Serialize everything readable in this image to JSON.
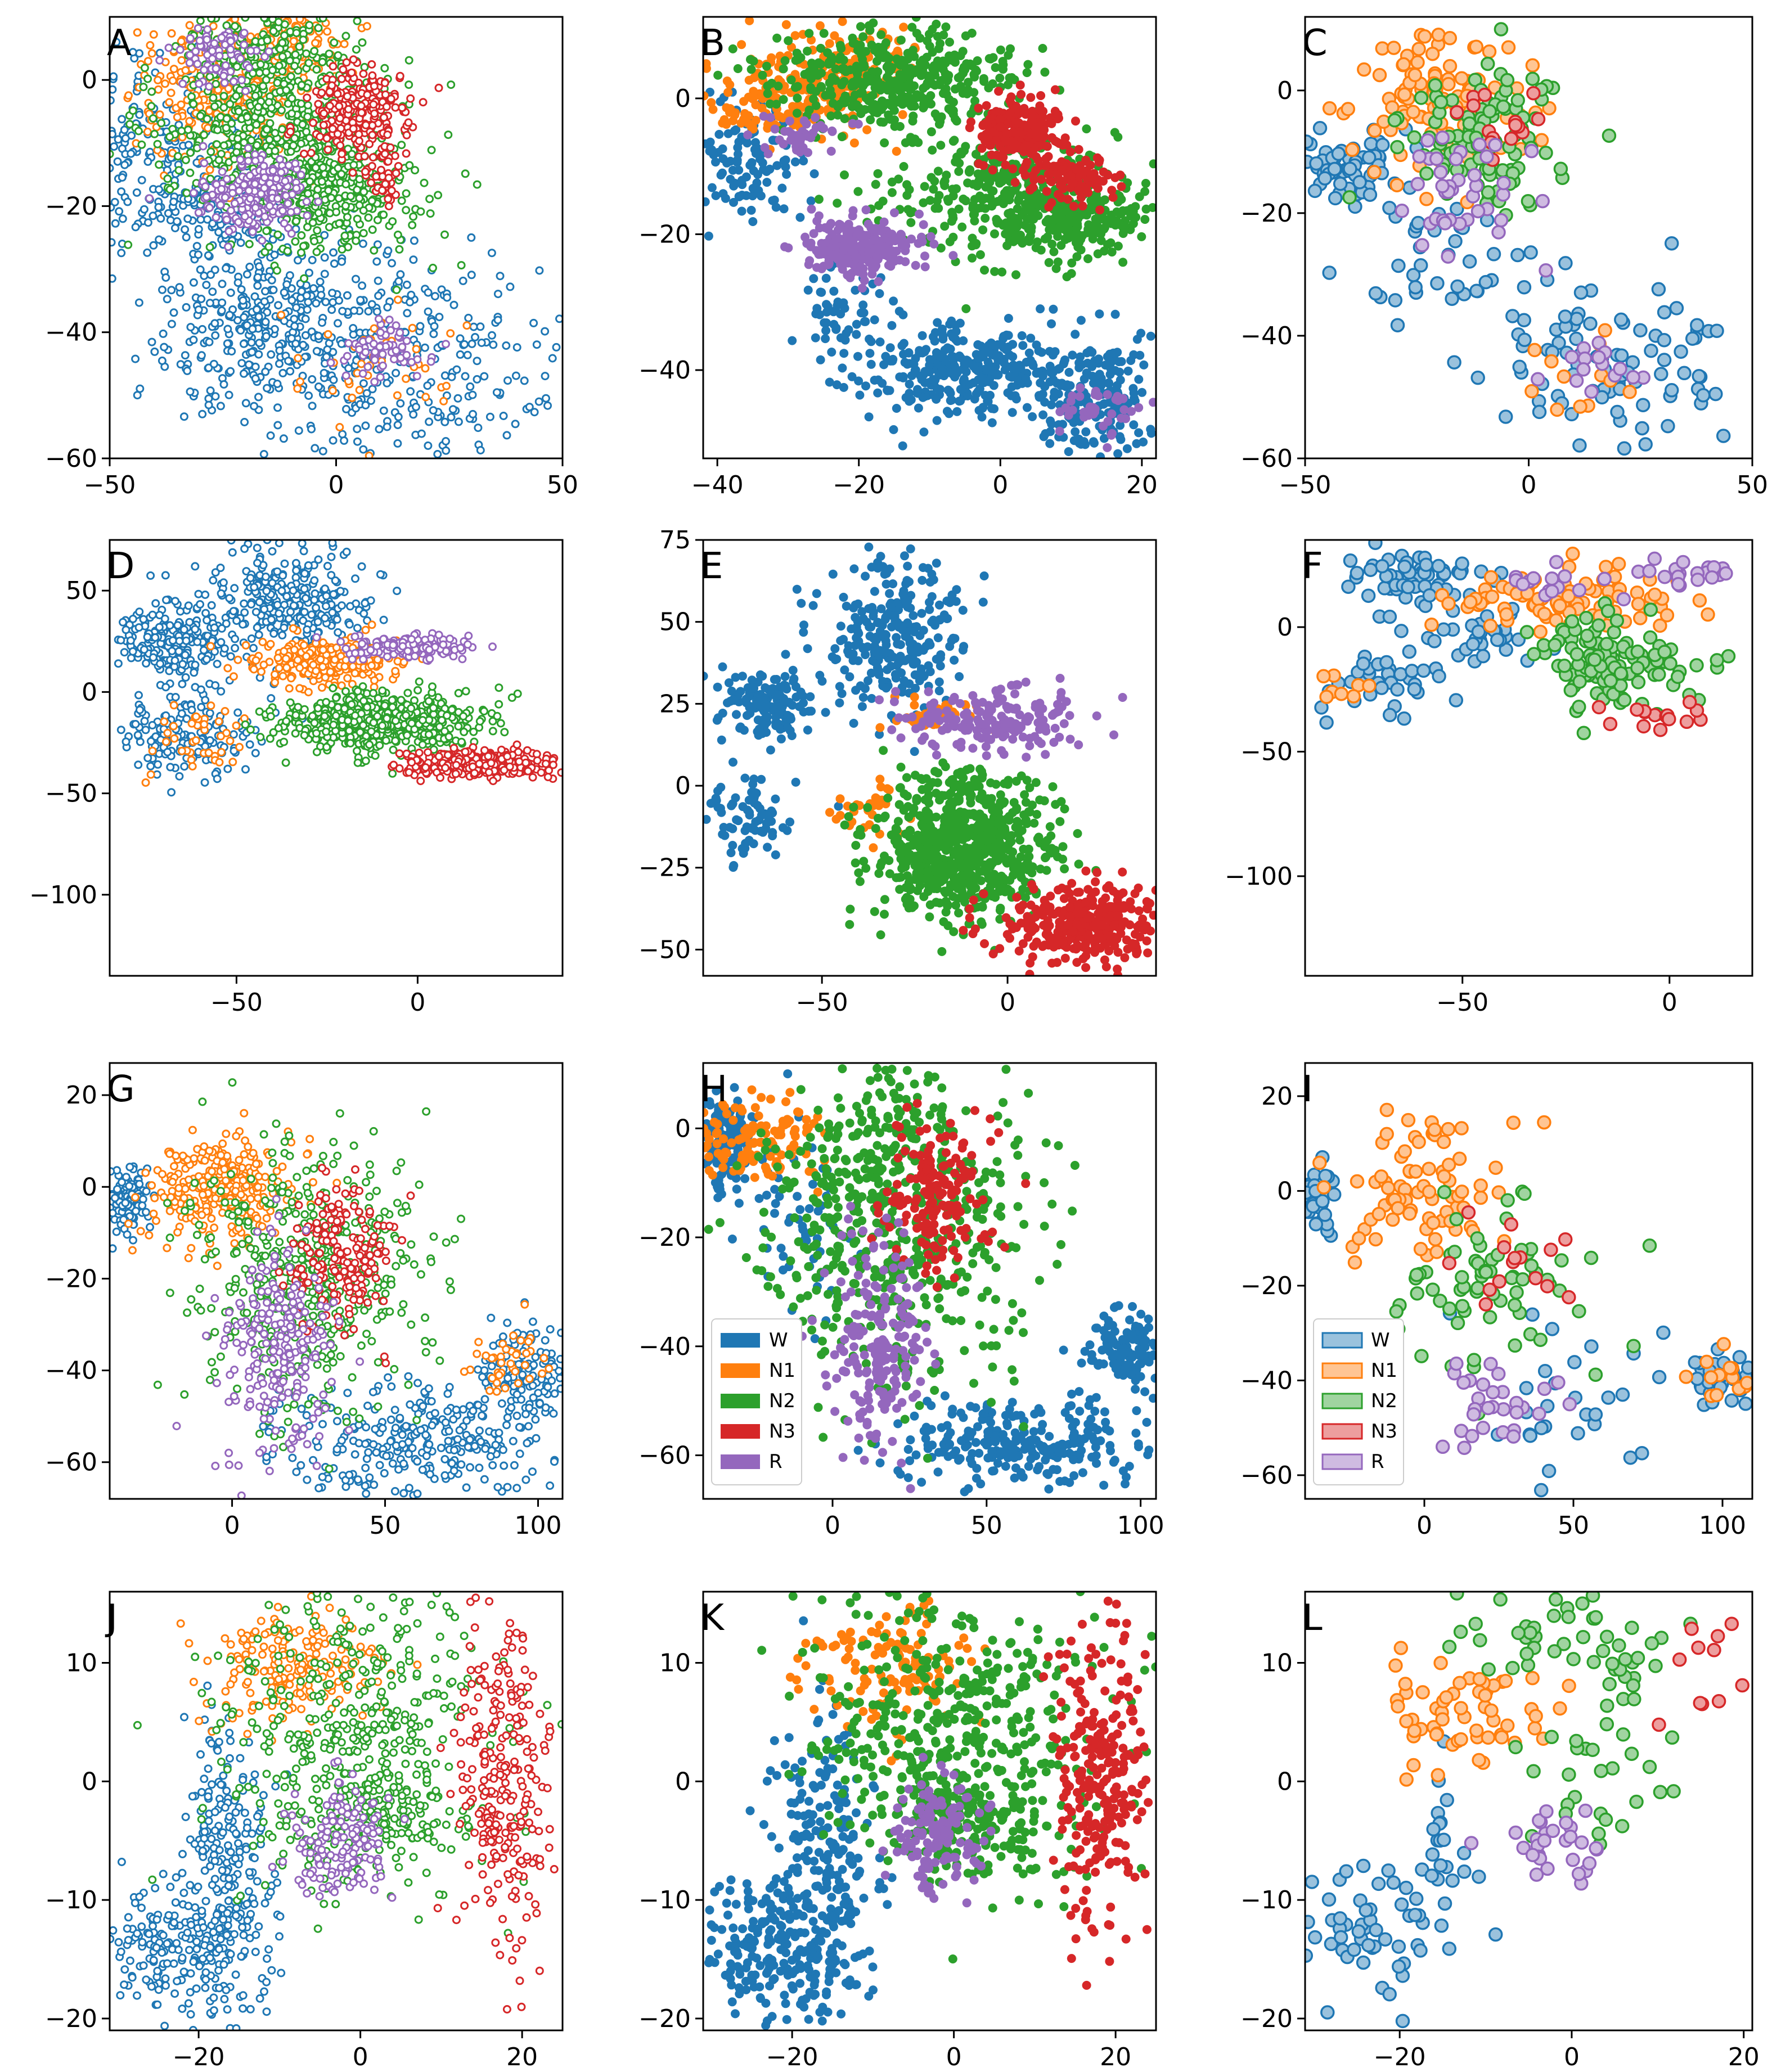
{
  "figure": {
    "description_panels": 12,
    "legend_title": ""
  },
  "colors": {
    "W": "#1f77b4",
    "N1": "#ff7f0e",
    "N2": "#2ca02c",
    "N3": "#d62728",
    "R": "#9467bd"
  },
  "chart_data": [
    {
      "label": "A",
      "type": "scatter",
      "marker": "hollow-small",
      "xlim": [
        -50,
        50
      ],
      "ylim": [
        -60,
        10
      ],
      "xticks": [
        -50,
        0,
        50
      ],
      "yticks": [
        -60,
        -40,
        -20,
        0
      ],
      "xtick_labels": [
        "−50",
        "0",
        "50"
      ],
      "ytick_labels": [
        "−60",
        "−40",
        "−20",
        "0"
      ],
      "series_regions": {
        "W": [
          [
            -42,
            -12,
            14,
            0.6,
            300
          ],
          [
            -15,
            -38,
            12,
            0.6,
            360
          ],
          [
            15,
            -45,
            18,
            0.5,
            280
          ],
          [
            -25,
            -20,
            6,
            0.4,
            80
          ]
        ],
        "N1": [
          [
            -25,
            -2,
            9,
            0.7,
            300
          ],
          [
            -12,
            5,
            6,
            0.5,
            140
          ],
          [
            10,
            -45,
            12,
            0.5,
            40
          ]
        ],
        "N2": [
          [
            -12,
            -8,
            14,
            0.55,
            520
          ],
          [
            0,
            -18,
            10,
            0.5,
            260
          ],
          [
            -18,
            5,
            8,
            0.5,
            160
          ]
        ],
        "N3": [
          [
            5,
            -5,
            6,
            0.6,
            220
          ],
          [
            10,
            -15,
            3,
            0.8,
            40
          ]
        ],
        "R": [
          [
            -18,
            -18,
            6,
            0.5,
            200
          ],
          [
            -26,
            4,
            5,
            0.5,
            80
          ],
          [
            12,
            -43,
            5,
            0.5,
            60
          ]
        ]
      }
    },
    {
      "label": "B",
      "type": "scatter",
      "marker": "filled-small",
      "xlim": [
        -42,
        22
      ],
      "ylim": [
        -53,
        12
      ],
      "xticks": [
        -40,
        -20,
        0,
        20
      ],
      "yticks": [
        -40,
        -20,
        0
      ],
      "xtick_labels": [
        "−40",
        "−20",
        "0",
        "20"
      ],
      "ytick_labels": [
        "−40",
        "−20",
        "0"
      ],
      "series_regions": {
        "W": [
          [
            -36,
            -10,
            4,
            1.2,
            120
          ],
          [
            -5,
            -40,
            7,
            0.5,
            320
          ],
          [
            13,
            -44,
            5,
            0.8,
            200
          ],
          [
            -22,
            -32,
            3,
            1.2,
            60
          ]
        ],
        "N1": [
          [
            -30,
            0,
            6,
            0.5,
            160
          ],
          [
            -22,
            5,
            5,
            0.5,
            120
          ]
        ],
        "N2": [
          [
            -15,
            3,
            9,
            0.4,
            420
          ],
          [
            2,
            -15,
            9,
            0.5,
            380
          ],
          [
            12,
            -18,
            4,
            0.6,
            120
          ]
        ],
        "N3": [
          [
            3,
            -5,
            3,
            0.8,
            220
          ],
          [
            10,
            -12,
            3,
            0.8,
            90
          ]
        ],
        "R": [
          [
            -20,
            -22,
            4,
            0.5,
            260
          ],
          [
            -28,
            -6,
            3,
            0.6,
            40
          ],
          [
            14,
            -46,
            3,
            0.6,
            40
          ]
        ]
      }
    },
    {
      "label": "C",
      "type": "scatter",
      "marker": "hollow-large",
      "xlim": [
        -50,
        50
      ],
      "ylim": [
        -60,
        12
      ],
      "xticks": [
        -50,
        0,
        50
      ],
      "yticks": [
        -60,
        -40,
        -20,
        0
      ],
      "xtick_labels": [
        "−50",
        "0",
        "50"
      ],
      "ytick_labels": [
        "−60",
        "−40",
        "−20",
        "0"
      ],
      "series_regions": {
        "W": [
          [
            -40,
            -12,
            6,
            0.5,
            60
          ],
          [
            -20,
            -30,
            10,
            0.6,
            40
          ],
          [
            20,
            -45,
            16,
            0.5,
            90
          ]
        ],
        "N1": [
          [
            -20,
            -2,
            10,
            0.6,
            110
          ],
          [
            10,
            -48,
            10,
            0.5,
            12
          ]
        ],
        "N2": [
          [
            -10,
            -8,
            10,
            0.6,
            110
          ]
        ],
        "N3": [
          [
            -8,
            -5,
            6,
            0.6,
            15
          ]
        ],
        "R": [
          [
            -15,
            -18,
            8,
            0.6,
            40
          ],
          [
            15,
            -45,
            5,
            0.5,
            15
          ]
        ]
      }
    },
    {
      "label": "D",
      "type": "scatter",
      "marker": "hollow-small",
      "xlim": [
        -85,
        40
      ],
      "ylim": [
        -140,
        75
      ],
      "xticks": [
        -50,
        0
      ],
      "yticks": [
        -100,
        -50,
        0,
        50
      ],
      "xtick_labels": [
        "−50",
        "0"
      ],
      "ytick_labels": [
        "−100",
        "−50",
        "0",
        "50"
      ],
      "series_regions": {
        "W": [
          [
            -35,
            45,
            12,
            1.2,
            300
          ],
          [
            -68,
            25,
            8,
            1.0,
            200
          ],
          [
            -65,
            -20,
            10,
            1.2,
            160
          ]
        ],
        "N1": [
          [
            -25,
            15,
            10,
            0.6,
            240
          ],
          [
            -60,
            -25,
            8,
            1.2,
            40
          ]
        ],
        "N2": [
          [
            -10,
            -15,
            14,
            0.5,
            600
          ]
        ],
        "N3": [
          [
            18,
            -35,
            10,
            0.35,
            320
          ]
        ],
        "R": [
          [
            -2,
            22,
            8,
            0.35,
            180
          ]
        ]
      }
    },
    {
      "label": "E",
      "type": "scatter",
      "marker": "filled-small",
      "xlim": [
        -82,
        40
      ],
      "ylim": [
        -58,
        75
      ],
      "xticks": [
        -50,
        0
      ],
      "yticks": [
        -50,
        -25,
        0,
        25,
        50,
        75
      ],
      "xtick_labels": [
        "−50",
        "0"
      ],
      "ytick_labels": [
        "−50",
        "−25",
        "0",
        "25",
        "50",
        "75"
      ],
      "series_regions": {
        "W": [
          [
            -30,
            45,
            10,
            1.2,
            280
          ],
          [
            -65,
            25,
            6,
            0.8,
            160
          ],
          [
            -70,
            -10,
            6,
            1.0,
            80
          ]
        ],
        "N1": [
          [
            -20,
            22,
            6,
            0.5,
            40
          ],
          [
            -40,
            -8,
            6,
            0.8,
            30
          ]
        ],
        "N2": [
          [
            -12,
            -18,
            12,
            0.9,
            700
          ]
        ],
        "N3": [
          [
            20,
            -42,
            12,
            0.5,
            320
          ]
        ],
        "R": [
          [
            -5,
            20,
            12,
            0.4,
            180
          ]
        ]
      }
    },
    {
      "label": "F",
      "type": "scatter",
      "marker": "hollow-large",
      "xlim": [
        -88,
        20
      ],
      "ylim": [
        -140,
        35
      ],
      "xticks": [
        -50,
        0
      ],
      "yticks": [
        -100,
        -50,
        0
      ],
      "xtick_labels": [
        "−50",
        "0"
      ],
      "ytick_labels": [
        "−100",
        "−50",
        "0"
      ],
      "series_regions": {
        "W": [
          [
            -62,
            20,
            8,
            0.6,
            60
          ],
          [
            -70,
            -20,
            8,
            1.2,
            40
          ],
          [
            -45,
            -5,
            6,
            1.0,
            30
          ]
        ],
        "N1": [
          [
            -25,
            12,
            12,
            0.5,
            90
          ],
          [
            -80,
            -25,
            4,
            1.0,
            8
          ]
        ],
        "N2": [
          [
            -15,
            -15,
            10,
            1.0,
            110
          ]
        ],
        "N3": [
          [
            -2,
            -35,
            8,
            0.4,
            15
          ]
        ],
        "R": [
          [
            5,
            22,
            6,
            0.5,
            20
          ],
          [
            -25,
            15,
            8,
            0.5,
            15
          ]
        ]
      }
    },
    {
      "label": "G",
      "type": "scatter",
      "marker": "hollow-small",
      "xlim": [
        -40,
        108
      ],
      "ylim": [
        -68,
        27
      ],
      "xticks": [
        0,
        50,
        100
      ],
      "yticks": [
        -60,
        -40,
        -20,
        0,
        20
      ],
      "xtick_labels": [
        "0",
        "50",
        "100"
      ],
      "ytick_labels": [
        "−60",
        "−40",
        "−20",
        "0",
        "20"
      ],
      "series_regions": {
        "W": [
          [
            -35,
            -3,
            4,
            1.0,
            120
          ],
          [
            60,
            -55,
            25,
            0.25,
            300
          ],
          [
            95,
            -40,
            8,
            0.6,
            120
          ]
        ],
        "N1": [
          [
            -5,
            0,
            12,
            0.5,
            300
          ],
          [
            90,
            -38,
            8,
            0.5,
            40
          ]
        ],
        "N2": [
          [
            25,
            -20,
            18,
            0.8,
            500
          ]
        ],
        "N3": [
          [
            35,
            -15,
            8,
            1.0,
            180
          ]
        ],
        "R": [
          [
            15,
            -35,
            10,
            1.2,
            220
          ]
        ]
      }
    },
    {
      "label": "H",
      "type": "scatter",
      "marker": "filled-small",
      "xlim": [
        -42,
        105
      ],
      "ylim": [
        -68,
        12
      ],
      "xticks": [
        0,
        50,
        100
      ],
      "yticks": [
        -60,
        -40,
        -20,
        0
      ],
      "xtick_labels": [
        "0",
        "50",
        "100"
      ],
      "ytick_labels": [
        "−60",
        "−40",
        "−20",
        "0"
      ],
      "series_regions": {
        "W": [
          [
            -35,
            -3,
            4,
            1.0,
            120
          ],
          [
            60,
            -58,
            20,
            0.2,
            260
          ],
          [
            95,
            -40,
            6,
            0.6,
            120
          ],
          [
            -10,
            -15,
            10,
            1.0,
            60
          ]
        ],
        "N1": [
          [
            -25,
            -2,
            10,
            0.4,
            120
          ]
        ],
        "N2": [
          [
            20,
            -15,
            20,
            0.8,
            600
          ]
        ],
        "N3": [
          [
            35,
            -12,
            8,
            1.0,
            160
          ]
        ],
        "R": [
          [
            15,
            -40,
            8,
            1.2,
            200
          ]
        ]
      },
      "legend": {
        "position": "lower-left",
        "entries": [
          "W",
          "N1",
          "N2",
          "N3",
          "R"
        ],
        "style": "filled"
      }
    },
    {
      "label": "I",
      "type": "scatter",
      "marker": "hollow-large",
      "xlim": [
        -40,
        110
      ],
      "ylim": [
        -65,
        27
      ],
      "xticks": [
        0,
        50,
        100
      ],
      "yticks": [
        -60,
        -40,
        -20,
        0,
        20
      ],
      "xtick_labels": [
        "0",
        "50",
        "100"
      ],
      "ytick_labels": [
        "−60",
        "−40",
        "−20",
        "0",
        "20"
      ],
      "series_regions": {
        "W": [
          [
            -35,
            -3,
            4,
            1.0,
            40
          ],
          [
            100,
            -40,
            6,
            0.5,
            40
          ],
          [
            50,
            -45,
            15,
            0.6,
            30
          ]
        ],
        "N1": [
          [
            0,
            0,
            14,
            0.5,
            80
          ],
          [
            100,
            -40,
            6,
            0.5,
            15
          ]
        ],
        "N2": [
          [
            30,
            -20,
            18,
            0.6,
            70
          ]
        ],
        "N3": [
          [
            30,
            -15,
            12,
            0.5,
            15
          ]
        ],
        "R": [
          [
            25,
            -45,
            10,
            0.6,
            30
          ]
        ]
      },
      "legend": {
        "position": "lower-left",
        "entries": [
          "W",
          "N1",
          "N2",
          "N3",
          "R"
        ],
        "style": "light"
      }
    },
    {
      "label": "J",
      "type": "scatter",
      "marker": "hollow-small",
      "xlim": [
        -31,
        25
      ],
      "ylim": [
        -21,
        16
      ],
      "xticks": [
        -20,
        0,
        20
      ],
      "yticks": [
        -20,
        -10,
        0,
        10
      ],
      "xtick_labels": [
        "−20",
        "0",
        "20"
      ],
      "ytick_labels": [
        "−20",
        "−10",
        "0",
        "10"
      ],
      "series_regions": {
        "W": [
          [
            -16,
            -8,
            3,
            2.2,
            260
          ],
          [
            -24,
            -14,
            4,
            0.7,
            160
          ]
        ],
        "N1": [
          [
            -8,
            10,
            5,
            0.5,
            200
          ]
        ],
        "N2": [
          [
            0,
            4,
            9,
            0.7,
            420
          ],
          [
            2,
            -3,
            5,
            0.4,
            160
          ]
        ],
        "N3": [
          [
            18,
            0,
            3,
            2.2,
            260
          ]
        ],
        "R": [
          [
            -2,
            -5,
            3,
            0.8,
            140
          ]
        ]
      }
    },
    {
      "label": "K",
      "type": "scatter",
      "marker": "filled-small",
      "xlim": [
        -31,
        25
      ],
      "ylim": [
        -21,
        16
      ],
      "xticks": [
        -20,
        0,
        20
      ],
      "yticks": [
        -20,
        -10,
        0,
        10
      ],
      "xtick_labels": [
        "−20",
        "0",
        "20"
      ],
      "ytick_labels": [
        "−20",
        "−10",
        "0",
        "10"
      ],
      "series_regions": {
        "W": [
          [
            -16,
            -8,
            3,
            2.2,
            260
          ],
          [
            -24,
            -14,
            4,
            0.7,
            160
          ]
        ],
        "N1": [
          [
            -8,
            10,
            5,
            0.5,
            120
          ]
        ],
        "N2": [
          [
            0,
            4,
            9,
            0.7,
            440
          ],
          [
            2,
            -3,
            5,
            0.4,
            160
          ]
        ],
        "N3": [
          [
            18,
            0,
            3,
            2.2,
            260
          ]
        ],
        "R": [
          [
            -2,
            -5,
            3,
            0.8,
            140
          ]
        ]
      }
    },
    {
      "label": "L",
      "type": "scatter",
      "marker": "hollow-large",
      "xlim": [
        -31,
        21
      ],
      "ylim": [
        -21,
        16
      ],
      "xticks": [
        -20,
        0,
        20
      ],
      "yticks": [
        -20,
        -10,
        0,
        10
      ],
      "xtick_labels": [
        "−20",
        "0",
        "20"
      ],
      "ytick_labels": [
        "−20",
        "−10",
        "0",
        "10"
      ],
      "series_regions": {
        "W": [
          [
            -24,
            -12,
            5,
            0.6,
            60
          ],
          [
            -15,
            -5,
            2,
            2.0,
            20
          ]
        ],
        "N1": [
          [
            -12,
            6,
            5,
            0.5,
            60
          ]
        ],
        "N2": [
          [
            0,
            12,
            6,
            0.5,
            50
          ],
          [
            2,
            0,
            5,
            0.8,
            30
          ]
        ],
        "N3": [
          [
            15,
            8,
            3,
            1.5,
            12
          ]
        ],
        "R": [
          [
            -2,
            -5,
            3,
            0.6,
            30
          ]
        ]
      }
    }
  ]
}
